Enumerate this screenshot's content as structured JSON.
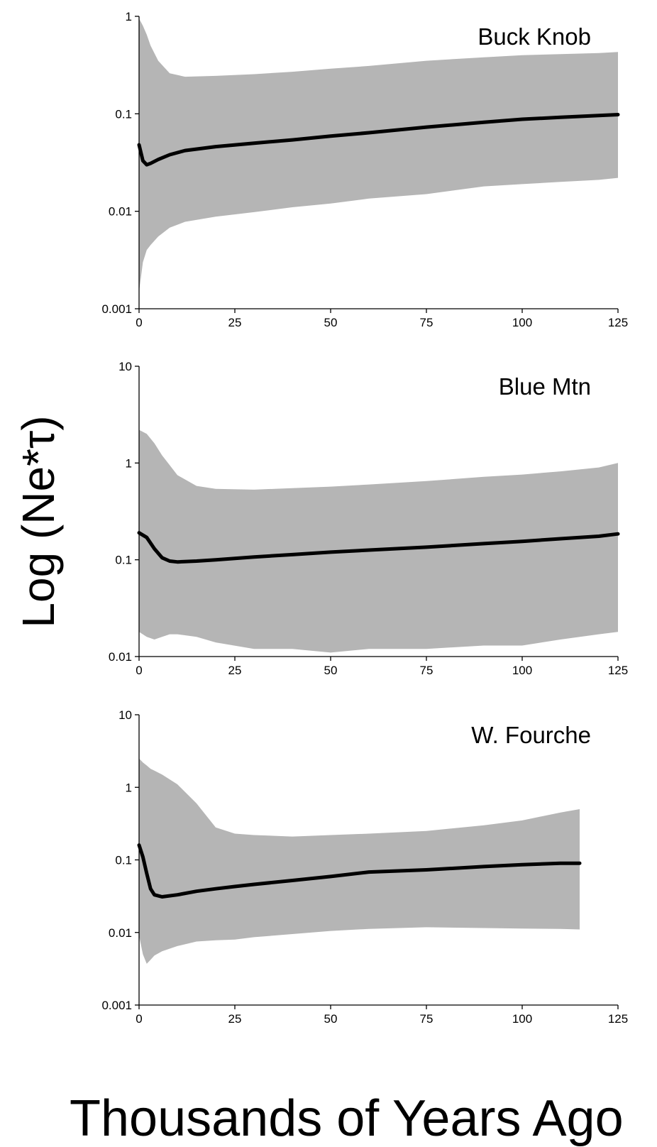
{
  "figure": {
    "ylabel": "Log (Ne*τ)",
    "xlabel": "Thousands of Years Ago"
  },
  "colors": {
    "band": "#b5b5b5",
    "line": "#000000",
    "axis": "#000000"
  },
  "chart_data": [
    {
      "type": "area",
      "title": "Buck Knob",
      "yscale": "log",
      "xlim": [
        0,
        125
      ],
      "ylim": [
        0.001,
        1
      ],
      "xticks": [
        0,
        25,
        50,
        75,
        100,
        125
      ],
      "yticks": [
        0.001,
        0.01,
        0.1,
        1
      ],
      "ytick_labels": [
        "0.001",
        "0.01",
        "0.1",
        "1"
      ],
      "x": [
        0,
        1,
        2,
        3,
        5,
        8,
        12,
        20,
        30,
        40,
        50,
        60,
        75,
        90,
        100,
        110,
        120,
        125
      ],
      "median": [
        0.048,
        0.033,
        0.03,
        0.031,
        0.034,
        0.038,
        0.042,
        0.046,
        0.05,
        0.054,
        0.059,
        0.064,
        0.073,
        0.082,
        0.088,
        0.092,
        0.096,
        0.098
      ],
      "upper": [
        0.95,
        0.8,
        0.65,
        0.5,
        0.35,
        0.26,
        0.24,
        0.245,
        0.255,
        0.27,
        0.29,
        0.31,
        0.35,
        0.38,
        0.4,
        0.41,
        0.42,
        0.43
      ],
      "lower": [
        0.0015,
        0.003,
        0.004,
        0.0045,
        0.0055,
        0.0068,
        0.0078,
        0.0088,
        0.0098,
        0.011,
        0.012,
        0.0135,
        0.015,
        0.018,
        0.019,
        0.02,
        0.021,
        0.022
      ]
    },
    {
      "type": "area",
      "title": "Blue Mtn",
      "yscale": "log",
      "xlim": [
        0,
        125
      ],
      "ylim": [
        0.01,
        10
      ],
      "xticks": [
        0,
        25,
        50,
        75,
        100,
        125
      ],
      "yticks": [
        0.01,
        0.1,
        1,
        10
      ],
      "ytick_labels": [
        "0.01",
        "0.1",
        "1",
        "10"
      ],
      "x": [
        0,
        2,
        4,
        6,
        8,
        10,
        15,
        20,
        30,
        40,
        50,
        60,
        75,
        90,
        100,
        110,
        120,
        125
      ],
      "median": [
        0.19,
        0.17,
        0.13,
        0.105,
        0.097,
        0.095,
        0.097,
        0.1,
        0.107,
        0.113,
        0.12,
        0.126,
        0.135,
        0.147,
        0.155,
        0.165,
        0.175,
        0.185
      ],
      "upper": [
        2.2,
        2.0,
        1.6,
        1.2,
        0.95,
        0.75,
        0.58,
        0.54,
        0.53,
        0.55,
        0.57,
        0.6,
        0.65,
        0.72,
        0.76,
        0.82,
        0.9,
        1.0
      ],
      "lower": [
        0.018,
        0.016,
        0.015,
        0.016,
        0.017,
        0.017,
        0.016,
        0.014,
        0.012,
        0.012,
        0.011,
        0.012,
        0.012,
        0.013,
        0.013,
        0.015,
        0.017,
        0.018
      ]
    },
    {
      "type": "area",
      "title": "W. Fourche",
      "yscale": "log",
      "xlim": [
        0,
        125
      ],
      "ylim": [
        0.001,
        10
      ],
      "xticks": [
        0,
        25,
        50,
        75,
        100,
        125
      ],
      "yticks": [
        0.001,
        0.01,
        0.1,
        1,
        10
      ],
      "ytick_labels": [
        "0.001",
        "0.01",
        "0.1",
        "1",
        "10"
      ],
      "x": [
        0,
        1,
        2,
        3,
        4,
        6,
        10,
        15,
        20,
        25,
        30,
        40,
        50,
        60,
        75,
        90,
        100,
        110,
        115
      ],
      "median": [
        0.16,
        0.11,
        0.065,
        0.04,
        0.033,
        0.031,
        0.033,
        0.037,
        0.04,
        0.043,
        0.046,
        0.052,
        0.059,
        0.068,
        0.073,
        0.081,
        0.086,
        0.09,
        0.09
      ],
      "upper": [
        2.5,
        2.2,
        2.0,
        1.8,
        1.7,
        1.5,
        1.1,
        0.6,
        0.28,
        0.23,
        0.22,
        0.21,
        0.22,
        0.23,
        0.25,
        0.3,
        0.35,
        0.45,
        0.5
      ],
      "lower": [
        0.009,
        0.005,
        0.0037,
        0.0042,
        0.0048,
        0.0055,
        0.0065,
        0.0075,
        0.0078,
        0.008,
        0.0086,
        0.0095,
        0.0105,
        0.0112,
        0.0118,
        0.0115,
        0.0113,
        0.0112,
        0.011
      ]
    }
  ]
}
